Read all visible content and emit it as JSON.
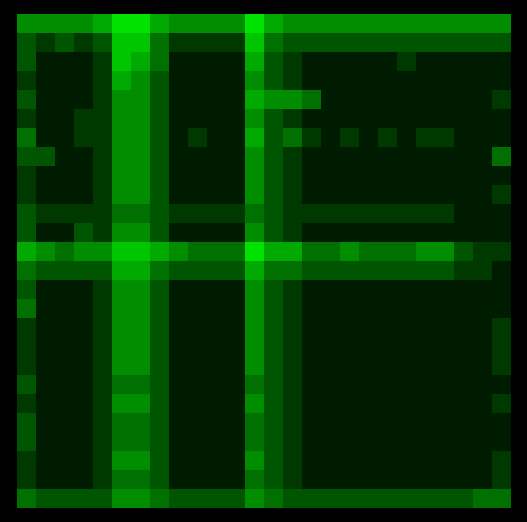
{
  "chart_data": {
    "type": "heatmap",
    "color": "#00ff00",
    "color_range": [
      0,
      9
    ],
    "tick_labels": false,
    "cells": [
      [
        5,
        5,
        5,
        5,
        6,
        8,
        8,
        6,
        5,
        5,
        5,
        5,
        8,
        6,
        5,
        5,
        5,
        5,
        5,
        5,
        5,
        5,
        5,
        5,
        5,
        5
      ],
      [
        3,
        2,
        3,
        2,
        3,
        7,
        7,
        4,
        2,
        2,
        2,
        2,
        7,
        4,
        3,
        3,
        3,
        3,
        3,
        3,
        3,
        3,
        3,
        3,
        3,
        3
      ],
      [
        3,
        1,
        1,
        1,
        2,
        7,
        6,
        4,
        1,
        1,
        1,
        1,
        6,
        3,
        2,
        1,
        1,
        1,
        1,
        1,
        2,
        1,
        1,
        1,
        1,
        1
      ],
      [
        2,
        1,
        1,
        1,
        2,
        6,
        5,
        3,
        1,
        1,
        1,
        1,
        5,
        3,
        2,
        1,
        1,
        1,
        1,
        1,
        1,
        1,
        1,
        1,
        1,
        1
      ],
      [
        3,
        1,
        1,
        1,
        2,
        5,
        5,
        3,
        1,
        1,
        1,
        1,
        6,
        5,
        5,
        4,
        1,
        1,
        1,
        1,
        1,
        1,
        1,
        1,
        1,
        2
      ],
      [
        2,
        1,
        1,
        2,
        2,
        5,
        5,
        3,
        1,
        1,
        1,
        1,
        5,
        3,
        2,
        1,
        1,
        1,
        1,
        1,
        1,
        1,
        1,
        1,
        1,
        1
      ],
      [
        4,
        1,
        1,
        2,
        2,
        5,
        5,
        3,
        1,
        2,
        1,
        1,
        6,
        3,
        4,
        2,
        1,
        2,
        1,
        2,
        1,
        2,
        2,
        1,
        1,
        1
      ],
      [
        3,
        3,
        1,
        1,
        2,
        5,
        5,
        3,
        1,
        1,
        1,
        1,
        5,
        3,
        2,
        1,
        1,
        1,
        1,
        1,
        1,
        1,
        1,
        1,
        1,
        4
      ],
      [
        2,
        1,
        1,
        1,
        2,
        5,
        5,
        3,
        1,
        1,
        1,
        1,
        5,
        3,
        2,
        1,
        1,
        1,
        1,
        1,
        1,
        1,
        1,
        1,
        1,
        1
      ],
      [
        2,
        1,
        1,
        1,
        2,
        5,
        5,
        3,
        1,
        1,
        1,
        1,
        5,
        3,
        2,
        1,
        1,
        1,
        1,
        1,
        1,
        1,
        1,
        1,
        1,
        2
      ],
      [
        3,
        2,
        2,
        2,
        2,
        4,
        4,
        3,
        2,
        2,
        2,
        2,
        4,
        3,
        2,
        2,
        2,
        2,
        2,
        2,
        2,
        2,
        2,
        1,
        1,
        1
      ],
      [
        3,
        1,
        1,
        3,
        2,
        5,
        5,
        3,
        1,
        1,
        1,
        1,
        5,
        3,
        2,
        1,
        1,
        1,
        1,
        1,
        1,
        1,
        1,
        1,
        1,
        1
      ],
      [
        6,
        5,
        4,
        5,
        5,
        7,
        7,
        6,
        5,
        4,
        4,
        4,
        8,
        6,
        6,
        4,
        4,
        5,
        4,
        4,
        4,
        5,
        5,
        3,
        2,
        2
      ],
      [
        4,
        3,
        3,
        3,
        3,
        6,
        6,
        4,
        3,
        3,
        3,
        3,
        6,
        4,
        4,
        3,
        3,
        3,
        3,
        3,
        3,
        3,
        3,
        2,
        2,
        1
      ],
      [
        3,
        1,
        1,
        1,
        2,
        5,
        5,
        3,
        1,
        1,
        1,
        1,
        5,
        3,
        2,
        1,
        1,
        1,
        1,
        1,
        1,
        1,
        1,
        1,
        1,
        1
      ],
      [
        4,
        1,
        1,
        1,
        2,
        5,
        5,
        3,
        1,
        1,
        1,
        1,
        5,
        3,
        2,
        1,
        1,
        1,
        1,
        1,
        1,
        1,
        1,
        1,
        1,
        1
      ],
      [
        2,
        1,
        1,
        1,
        2,
        5,
        5,
        3,
        1,
        1,
        1,
        1,
        5,
        3,
        2,
        1,
        1,
        1,
        1,
        1,
        1,
        1,
        1,
        1,
        1,
        2
      ],
      [
        2,
        1,
        1,
        1,
        2,
        5,
        5,
        3,
        1,
        1,
        1,
        1,
        5,
        3,
        2,
        1,
        1,
        1,
        1,
        1,
        1,
        1,
        1,
        1,
        1,
        2
      ],
      [
        2,
        1,
        1,
        1,
        2,
        5,
        5,
        3,
        1,
        1,
        1,
        1,
        5,
        3,
        2,
        1,
        1,
        1,
        1,
        1,
        1,
        1,
        1,
        1,
        1,
        2
      ],
      [
        3,
        1,
        1,
        1,
        2,
        4,
        4,
        3,
        1,
        1,
        1,
        1,
        4,
        3,
        2,
        1,
        1,
        1,
        1,
        1,
        1,
        1,
        1,
        1,
        1,
        1
      ],
      [
        2,
        1,
        1,
        1,
        2,
        5,
        5,
        3,
        1,
        1,
        1,
        1,
        5,
        3,
        2,
        1,
        1,
        1,
        1,
        1,
        1,
        1,
        1,
        1,
        1,
        2
      ],
      [
        3,
        1,
        1,
        1,
        2,
        4,
        4,
        3,
        1,
        1,
        1,
        1,
        4,
        3,
        2,
        1,
        1,
        1,
        1,
        1,
        1,
        1,
        1,
        1,
        1,
        1
      ],
      [
        3,
        1,
        1,
        1,
        2,
        4,
        4,
        3,
        1,
        1,
        1,
        1,
        4,
        3,
        2,
        1,
        1,
        1,
        1,
        1,
        1,
        1,
        1,
        1,
        1,
        1
      ],
      [
        2,
        1,
        1,
        1,
        2,
        5,
        5,
        3,
        1,
        1,
        1,
        1,
        5,
        3,
        2,
        1,
        1,
        1,
        1,
        1,
        1,
        1,
        1,
        1,
        1,
        2
      ],
      [
        2,
        1,
        1,
        1,
        2,
        4,
        4,
        3,
        1,
        1,
        1,
        1,
        4,
        3,
        2,
        1,
        1,
        1,
        1,
        1,
        1,
        1,
        1,
        1,
        1,
        2
      ],
      [
        4,
        3,
        3,
        3,
        3,
        5,
        5,
        4,
        3,
        3,
        3,
        3,
        5,
        4,
        3,
        3,
        3,
        3,
        3,
        3,
        3,
        3,
        3,
        3,
        4,
        4
      ]
    ]
  }
}
